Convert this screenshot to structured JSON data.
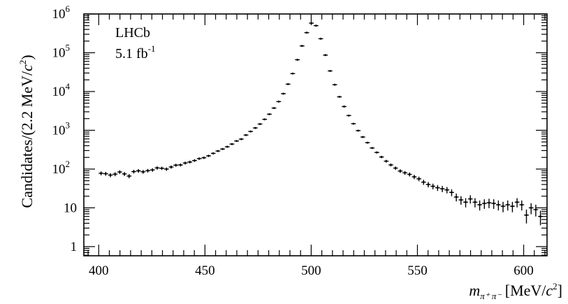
{
  "chart_data": {
    "type": "scatter",
    "title": "",
    "xlabel": {
      "main": "m",
      "subscript": "π⁺ π⁻",
      "unit_prefix": " [MeV/",
      "unit_c": "c",
      "unit_power": "2",
      "unit_suffix": "]"
    },
    "ylabel": {
      "prefix": "Candidates/(2.2 MeV/",
      "c": "c",
      "power": "2",
      "suffix": ")"
    },
    "annotations": {
      "experiment": "LHCb",
      "luminosity": "5.1 fb",
      "luminosity_exponent": "-1"
    },
    "xlim": [
      393,
      611
    ],
    "ylim": [
      0.58,
      1000000
    ],
    "yscale": "log",
    "x_ticks": [
      {
        "value": 400,
        "label": "400"
      },
      {
        "value": 450,
        "label": "450"
      },
      {
        "value": 500,
        "label": "500"
      },
      {
        "value": 550,
        "label": "550"
      },
      {
        "value": 600,
        "label": "600"
      }
    ],
    "y_ticks": [
      {
        "value": 1,
        "label": "1"
      },
      {
        "value": 10,
        "label": "10"
      },
      {
        "value": 100,
        "label": "10",
        "exponent": "2"
      },
      {
        "value": 1000,
        "label": "10",
        "exponent": "3"
      },
      {
        "value": 10000,
        "label": "10",
        "exponent": "4"
      },
      {
        "value": 100000,
        "label": "10",
        "exponent": "5"
      },
      {
        "value": 1000000,
        "label": "10",
        "exponent": "6"
      }
    ],
    "bin_width": 2.2,
    "series": [
      {
        "points": [
          {
            "x": 401.1,
            "y": 78
          },
          {
            "x": 403.3,
            "y": 76
          },
          {
            "x": 405.5,
            "y": 70
          },
          {
            "x": 407.7,
            "y": 74
          },
          {
            "x": 409.9,
            "y": 84
          },
          {
            "x": 412.1,
            "y": 75
          },
          {
            "x": 414.3,
            "y": 66
          },
          {
            "x": 416.5,
            "y": 86
          },
          {
            "x": 418.7,
            "y": 90
          },
          {
            "x": 420.9,
            "y": 85
          },
          {
            "x": 423.1,
            "y": 91
          },
          {
            "x": 425.3,
            "y": 95
          },
          {
            "x": 427.5,
            "y": 107
          },
          {
            "x": 429.7,
            "y": 105
          },
          {
            "x": 431.9,
            "y": 100
          },
          {
            "x": 434.1,
            "y": 113
          },
          {
            "x": 436.3,
            "y": 126
          },
          {
            "x": 438.5,
            "y": 128
          },
          {
            "x": 440.7,
            "y": 143
          },
          {
            "x": 442.9,
            "y": 152
          },
          {
            "x": 445.1,
            "y": 166
          },
          {
            "x": 447.3,
            "y": 186
          },
          {
            "x": 449.5,
            "y": 196
          },
          {
            "x": 451.7,
            "y": 219
          },
          {
            "x": 453.9,
            "y": 254
          },
          {
            "x": 456.1,
            "y": 292
          },
          {
            "x": 458.3,
            "y": 329
          },
          {
            "x": 460.5,
            "y": 376
          },
          {
            "x": 462.7,
            "y": 441
          },
          {
            "x": 464.9,
            "y": 530
          },
          {
            "x": 467.1,
            "y": 592
          },
          {
            "x": 469.3,
            "y": 753
          },
          {
            "x": 471.5,
            "y": 933
          },
          {
            "x": 473.7,
            "y": 1150
          },
          {
            "x": 475.9,
            "y": 1450
          },
          {
            "x": 478.1,
            "y": 1920
          },
          {
            "x": 480.3,
            "y": 2600
          },
          {
            "x": 482.5,
            "y": 3750
          },
          {
            "x": 484.7,
            "y": 5500
          },
          {
            "x": 486.9,
            "y": 8800
          },
          {
            "x": 489.1,
            "y": 15500
          },
          {
            "x": 491.3,
            "y": 29000
          },
          {
            "x": 493.5,
            "y": 66000
          },
          {
            "x": 495.7,
            "y": 150000
          },
          {
            "x": 497.9,
            "y": 330000
          },
          {
            "x": 500.1,
            "y": 580000
          },
          {
            "x": 502.3,
            "y": 500000
          },
          {
            "x": 504.5,
            "y": 230000
          },
          {
            "x": 506.7,
            "y": 87000
          },
          {
            "x": 508.9,
            "y": 34000
          },
          {
            "x": 511.1,
            "y": 15000
          },
          {
            "x": 513.3,
            "y": 7300
          },
          {
            "x": 515.5,
            "y": 4100
          },
          {
            "x": 517.7,
            "y": 2400
          },
          {
            "x": 519.9,
            "y": 1480
          },
          {
            "x": 522.1,
            "y": 980
          },
          {
            "x": 524.3,
            "y": 670
          },
          {
            "x": 526.5,
            "y": 480
          },
          {
            "x": 528.7,
            "y": 350
          },
          {
            "x": 530.9,
            "y": 268
          },
          {
            "x": 533.1,
            "y": 205
          },
          {
            "x": 535.3,
            "y": 160
          },
          {
            "x": 537.5,
            "y": 128
          },
          {
            "x": 539.7,
            "y": 106
          },
          {
            "x": 541.9,
            "y": 89
          },
          {
            "x": 544.1,
            "y": 80
          },
          {
            "x": 546.3,
            "y": 73
          },
          {
            "x": 548.5,
            "y": 63
          },
          {
            "x": 550.7,
            "y": 56
          },
          {
            "x": 552.9,
            "y": 46
          },
          {
            "x": 555.1,
            "y": 40
          },
          {
            "x": 557.3,
            "y": 36
          },
          {
            "x": 559.5,
            "y": 33
          },
          {
            "x": 561.7,
            "y": 31
          },
          {
            "x": 563.9,
            "y": 29
          },
          {
            "x": 566.1,
            "y": 25
          },
          {
            "x": 568.3,
            "y": 19
          },
          {
            "x": 570.5,
            "y": 16
          },
          {
            "x": 572.7,
            "y": 14
          },
          {
            "x": 574.9,
            "y": 17
          },
          {
            "x": 577.1,
            "y": 14
          },
          {
            "x": 579.3,
            "y": 12
          },
          {
            "x": 581.5,
            "y": 13
          },
          {
            "x": 583.7,
            "y": 13.5
          },
          {
            "x": 585.9,
            "y": 13
          },
          {
            "x": 588.1,
            "y": 12
          },
          {
            "x": 590.3,
            "y": 11
          },
          {
            "x": 592.5,
            "y": 12
          },
          {
            "x": 594.7,
            "y": 11
          },
          {
            "x": 596.9,
            "y": 14
          },
          {
            "x": 599.1,
            "y": 12
          },
          {
            "x": 601.3,
            "y": 6.5
          },
          {
            "x": 603.5,
            "y": 10
          },
          {
            "x": 605.7,
            "y": 9
          },
          {
            "x": 607.9,
            "y": 6
          }
        ]
      }
    ]
  }
}
